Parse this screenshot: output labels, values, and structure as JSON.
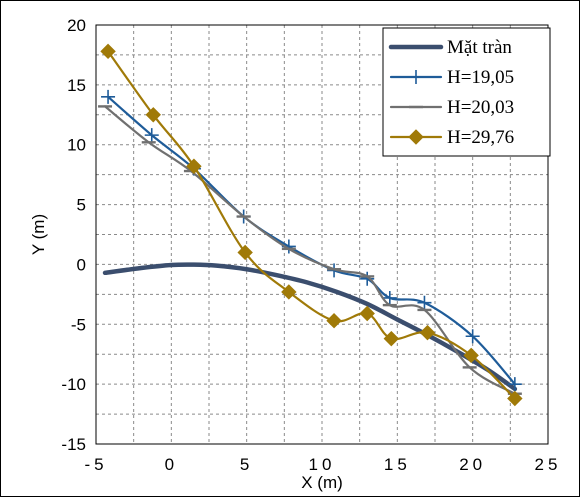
{
  "chart_data": {
    "type": "line",
    "title": "",
    "xlabel": "X (m)",
    "ylabel": "Y (m)",
    "xlim": [
      -5,
      25
    ],
    "ylim": [
      -15,
      20
    ],
    "x_ticks": [
      -5,
      0,
      5,
      10,
      15,
      20,
      25
    ],
    "x_tick_labels": [
      "-5",
      "0",
      "5",
      "10",
      "15",
      "20",
      "25"
    ],
    "y_ticks": [
      -15,
      -10,
      -5,
      0,
      5,
      10,
      15,
      20
    ],
    "y_tick_labels": [
      "-15",
      "-10",
      "-5",
      "0",
      "5",
      "10",
      "15",
      "20"
    ],
    "grid": true,
    "grid_style": "dashed",
    "legend_position": "top-right",
    "series": [
      {
        "name": "Mặt tràn",
        "color": "#3b4e6e",
        "marker": "none",
        "x": [
          -4.4,
          -2,
          0,
          1.5,
          3,
          5,
          7,
          9,
          11,
          13,
          15,
          17,
          19,
          21,
          22.8
        ],
        "y": [
          -0.7,
          -0.3,
          -0.05,
          -0.02,
          -0.1,
          -0.4,
          -0.9,
          -1.5,
          -2.3,
          -3.3,
          -4.6,
          -5.9,
          -7.3,
          -8.8,
          -10.4
        ]
      },
      {
        "name": "H=19,05",
        "color": "#1f5c99",
        "marker": "plus",
        "x": [
          -4.2,
          -1.3,
          1.5,
          4.8,
          7.8,
          10.8,
          13.0,
          14.5,
          16.8,
          20.0,
          22.8
        ],
        "y": [
          14.0,
          10.8,
          8.0,
          4.0,
          1.5,
          -0.5,
          -1.2,
          -2.8,
          -3.2,
          -6.0,
          -10.0
        ]
      },
      {
        "name": "H=20,03",
        "color": "#707070",
        "marker": "dash",
        "x": [
          -4.4,
          -1.5,
          1.3,
          4.8,
          7.8,
          10.8,
          13.0,
          14.5,
          16.8,
          19.8,
          22.8
        ],
        "y": [
          13.2,
          10.2,
          7.8,
          4.0,
          1.3,
          -0.4,
          -1.0,
          -3.4,
          -3.8,
          -8.6,
          -10.8
        ]
      },
      {
        "name": "H=29,76",
        "color": "#a07a08",
        "marker": "diamond",
        "x": [
          -4.2,
          -1.2,
          1.5,
          4.9,
          7.8,
          10.8,
          13.0,
          14.6,
          17.0,
          19.9,
          22.8
        ],
        "y": [
          17.8,
          12.5,
          8.2,
          1.0,
          -2.3,
          -4.7,
          -4.1,
          -6.2,
          -5.7,
          -7.6,
          -11.2
        ]
      }
    ]
  }
}
